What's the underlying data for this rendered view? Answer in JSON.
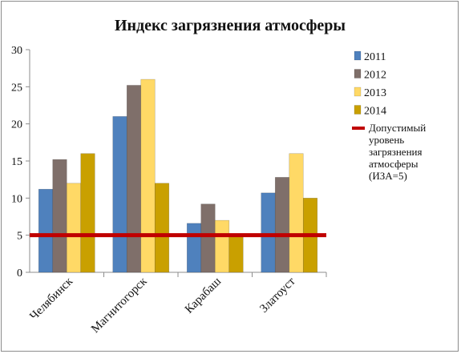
{
  "chart_data": {
    "type": "bar",
    "title": "Индекс загрязнения атмосферы",
    "categories": [
      "Челябинск",
      "Магнитогорск",
      "Карабаш",
      "Златоуст"
    ],
    "series": [
      {
        "name": "2011",
        "color": "#4f81bd",
        "values": [
          11.2,
          21.0,
          6.6,
          10.7
        ]
      },
      {
        "name": "2012",
        "color": "#7f6f6a",
        "values": [
          15.2,
          25.2,
          9.2,
          12.8
        ]
      },
      {
        "name": "2013",
        "color": "#ffd966",
        "values": [
          12.0,
          26.0,
          7.0,
          16.0
        ]
      },
      {
        "name": "2014",
        "color": "#c9a000",
        "values": [
          16.0,
          12.0,
          5.0,
          10.0
        ]
      }
    ],
    "threshold": {
      "value": 5,
      "color": "#c00000",
      "label_lines": [
        "Допустимый",
        "уровень",
        "загрязнения",
        "атмосферы",
        "(ИЗА=5)"
      ]
    },
    "yticks": [
      "0",
      "5",
      "10",
      "15",
      "20",
      "25",
      "30"
    ],
    "ylim": [
      0,
      30
    ],
    "legend_position": "right",
    "grid": false
  }
}
